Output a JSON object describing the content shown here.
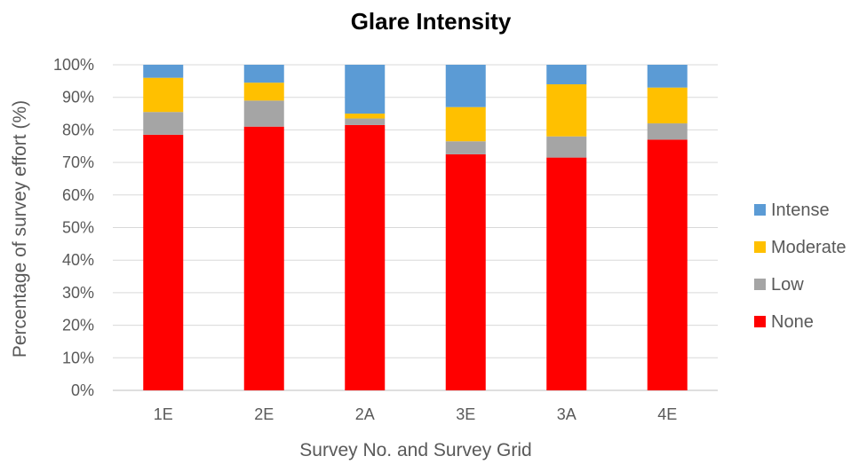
{
  "chart_data": {
    "type": "bar",
    "stacked": true,
    "title": "Glare Intensity",
    "xlabel": "Survey No. and Survey Grid",
    "ylabel": "Percentage of survey effort (%)",
    "categories": [
      "1E",
      "2E",
      "2A",
      "3E",
      "3A",
      "4E"
    ],
    "ylim": [
      0,
      100
    ],
    "yticks": [
      "0%",
      "10%",
      "20%",
      "30%",
      "40%",
      "50%",
      "60%",
      "70%",
      "80%",
      "90%",
      "100%"
    ],
    "grid": true,
    "legend_position": "right",
    "series": [
      {
        "name": "None",
        "color": "#FF0000",
        "values": [
          78.5,
          81,
          81.5,
          72.5,
          71.5,
          77
        ]
      },
      {
        "name": "Low",
        "color": "#A5A5A5",
        "values": [
          7,
          8,
          2,
          4,
          6.5,
          5
        ]
      },
      {
        "name": "Moderate",
        "color": "#FFC000",
        "values": [
          10.5,
          5.5,
          1.5,
          10.5,
          16,
          11
        ]
      },
      {
        "name": "Intense",
        "color": "#5B9BD5",
        "values": [
          4,
          5.5,
          15,
          13,
          6,
          7
        ]
      }
    ]
  }
}
